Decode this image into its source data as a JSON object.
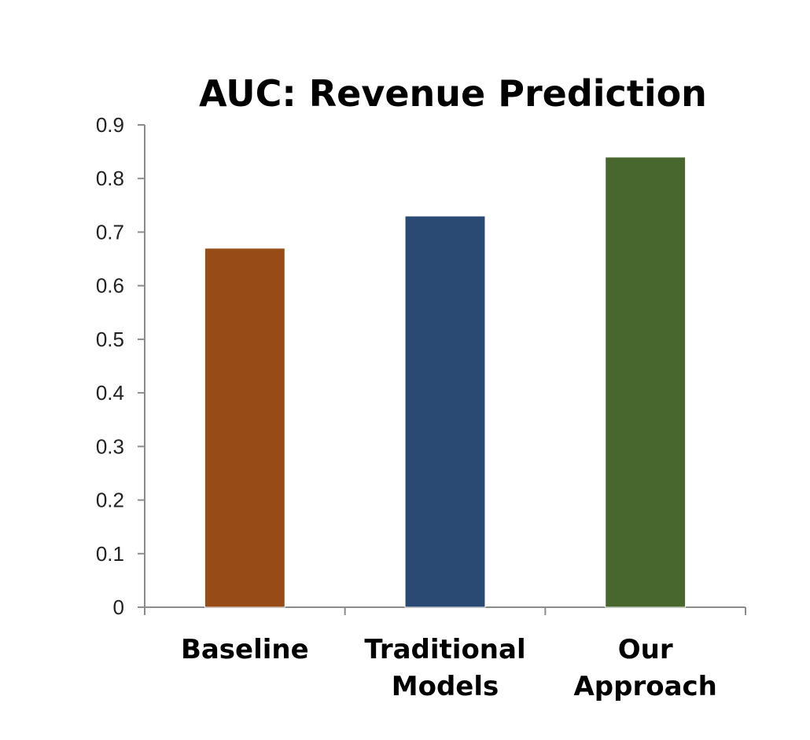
{
  "chart_data": {
    "type": "bar",
    "title": "AUC: Revenue Prediction",
    "xlabel": "",
    "ylabel": "",
    "categories": [
      [
        "Baseline"
      ],
      [
        "Traditional",
        "Models"
      ],
      [
        "Our",
        "Approach"
      ]
    ],
    "values": [
      0.67,
      0.73,
      0.84
    ],
    "colors": [
      "#974b17",
      "#2b4a73",
      "#47672f"
    ],
    "ylim": [
      0,
      0.9
    ],
    "yticks": [
      "0",
      "0.1",
      "0.2",
      "0.3",
      "0.4",
      "0.5",
      "0.6",
      "0.7",
      "0.8",
      "0.9"
    ],
    "grid": false,
    "legend": "none"
  }
}
